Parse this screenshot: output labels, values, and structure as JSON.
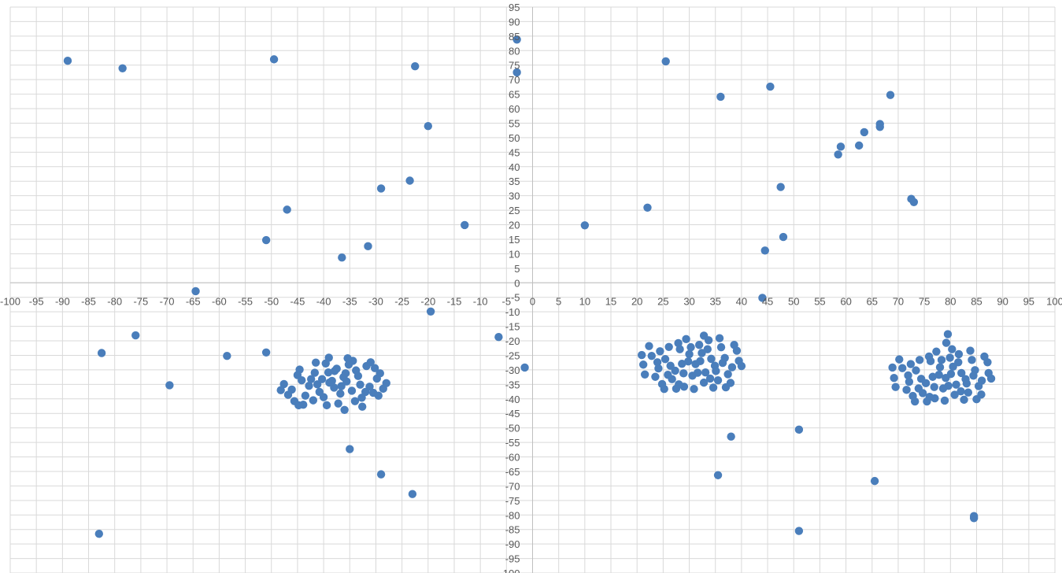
{
  "chart_data": {
    "type": "scatter",
    "title": "",
    "xlabel": "",
    "ylabel": "",
    "xlim": [
      -100,
      100
    ],
    "ylim": [
      -100,
      95
    ],
    "x_major_step": 5,
    "y_major_step": 5,
    "grid": true,
    "legend": "none",
    "colors": {
      "marker": "#4a7ebb",
      "grid": "#d9d9d9",
      "axis": "#bfbfbf",
      "tick_text": "#595959"
    },
    "series": [
      {
        "points": [
          [
            -89.0,
            76.5
          ],
          [
            -78.5,
            73.9
          ],
          [
            -49.5,
            77.0
          ],
          [
            -22.5,
            74.6
          ],
          [
            -3.0,
            83.8
          ],
          [
            -3.0,
            72.5
          ],
          [
            -20.0,
            54.0
          ],
          [
            -29.0,
            32.5
          ],
          [
            -23.5,
            35.2
          ],
          [
            -47.0,
            25.2
          ],
          [
            -13.0,
            19.9
          ],
          [
            -51.0,
            14.7
          ],
          [
            -31.5,
            12.6
          ],
          [
            -36.5,
            8.7
          ],
          [
            -64.5,
            -2.9
          ],
          [
            -19.5,
            -9.9
          ],
          [
            -76.0,
            -18.1
          ],
          [
            -82.5,
            -24.2
          ],
          [
            -58.5,
            -25.2
          ],
          [
            -51.0,
            -24.0
          ],
          [
            -69.5,
            -35.3
          ],
          [
            -6.5,
            -18.7
          ],
          [
            -1.5,
            -29.2
          ],
          [
            -35.0,
            -57.3
          ],
          [
            -29.0,
            -66.0
          ],
          [
            -23.0,
            -72.8
          ],
          [
            -83.0,
            -86.5
          ],
          [
            25.5,
            76.3
          ],
          [
            45.5,
            67.6
          ],
          [
            36.0,
            64.1
          ],
          [
            68.5,
            64.7
          ],
          [
            66.5,
            54.7
          ],
          [
            66.5,
            53.7
          ],
          [
            63.5,
            51.9
          ],
          [
            59.0,
            46.9
          ],
          [
            62.5,
            47.3
          ],
          [
            58.5,
            44.2
          ],
          [
            47.5,
            33.0
          ],
          [
            72.5,
            28.9
          ],
          [
            73.0,
            27.8
          ],
          [
            22.0,
            25.9
          ],
          [
            10.0,
            19.8
          ],
          [
            48.0,
            15.8
          ],
          [
            44.5,
            11.1
          ],
          [
            44.0,
            -5.2
          ],
          [
            79.5,
            -17.7
          ],
          [
            38.0,
            -53.0
          ],
          [
            51.0,
            -50.6
          ],
          [
            35.5,
            -66.3
          ],
          [
            65.5,
            -68.3
          ],
          [
            84.5,
            -80.4
          ],
          [
            84.5,
            -81.1
          ],
          [
            51.0,
            -85.5
          ],
          [
            -40.3,
            -33.2
          ],
          [
            -38.0,
            -36.1
          ],
          [
            -35.6,
            -34.0
          ],
          [
            -42.8,
            -35.5
          ],
          [
            -33.4,
            -32.1
          ],
          [
            -39.1,
            -30.9
          ],
          [
            -36.8,
            -38.2
          ],
          [
            -44.2,
            -33.6
          ],
          [
            -31.2,
            -35.8
          ],
          [
            -40.0,
            -39.4
          ],
          [
            -37.5,
            -29.6
          ],
          [
            -34.6,
            -37.2
          ],
          [
            -46.1,
            -36.8
          ],
          [
            -29.8,
            -33.0
          ],
          [
            -41.7,
            -31.0
          ],
          [
            -38.9,
            -34.4
          ],
          [
            -36.2,
            -32.5
          ],
          [
            -43.5,
            -38.9
          ],
          [
            -32.7,
            -39.6
          ],
          [
            -45.0,
            -31.8
          ],
          [
            -35.2,
            -28.2
          ],
          [
            -39.6,
            -27.8
          ],
          [
            -30.5,
            -37.9
          ],
          [
            -42.0,
            -40.5
          ],
          [
            -37.2,
            -41.6
          ],
          [
            -33.8,
            -30.2
          ],
          [
            -47.6,
            -34.9
          ],
          [
            -28.6,
            -36.5
          ],
          [
            -41.2,
            -35.0
          ],
          [
            -36.6,
            -35.6
          ],
          [
            -34.0,
            -40.8
          ],
          [
            -44.6,
            -29.9
          ],
          [
            -31.8,
            -28.7
          ],
          [
            -39.4,
            -42.2
          ],
          [
            -46.8,
            -38.6
          ],
          [
            -29.2,
            -31.2
          ],
          [
            -43.9,
            -42.0
          ],
          [
            -32.6,
            -42.7
          ],
          [
            -38.4,
            -33.8
          ],
          [
            -35.8,
            -31.2
          ],
          [
            -40.8,
            -37.6
          ],
          [
            -33.0,
            -35.1
          ],
          [
            -42.4,
            -33.2
          ],
          [
            -37.9,
            -30.4
          ],
          [
            -45.6,
            -40.8
          ],
          [
            -30.2,
            -29.4
          ],
          [
            -36.0,
            -43.8
          ],
          [
            -48.2,
            -37.0
          ],
          [
            -28.0,
            -34.6
          ],
          [
            -41.5,
            -27.5
          ],
          [
            -34.4,
            -26.9
          ],
          [
            -39.0,
            -25.8
          ],
          [
            -35.4,
            -26.0
          ],
          [
            -31.0,
            -27.4
          ],
          [
            -29.5,
            -38.9
          ],
          [
            -44.8,
            -42.2
          ],
          [
            -32.0,
            -37.6
          ],
          [
            29.8,
            -27.1
          ],
          [
            32.4,
            -24.2
          ],
          [
            27.3,
            -30.3
          ],
          [
            34.9,
            -28.6
          ],
          [
            30.6,
            -32.0
          ],
          [
            25.4,
            -26.3
          ],
          [
            36.8,
            -25.9
          ],
          [
            28.2,
            -22.9
          ],
          [
            33.1,
            -30.9
          ],
          [
            31.9,
            -21.4
          ],
          [
            24.1,
            -29.5
          ],
          [
            38.2,
            -29.1
          ],
          [
            26.7,
            -33.2
          ],
          [
            35.5,
            -33.6
          ],
          [
            29.0,
            -35.8
          ],
          [
            22.8,
            -25.2
          ],
          [
            39.5,
            -26.9
          ],
          [
            33.7,
            -19.8
          ],
          [
            27.9,
            -20.8
          ],
          [
            31.2,
            -28.0
          ],
          [
            34.2,
            -26.2
          ],
          [
            25.9,
            -31.7
          ],
          [
            37.4,
            -31.5
          ],
          [
            30.0,
            -24.6
          ],
          [
            23.5,
            -32.4
          ],
          [
            36.1,
            -22.2
          ],
          [
            28.6,
            -27.9
          ],
          [
            32.8,
            -34.4
          ],
          [
            21.2,
            -28.2
          ],
          [
            39.1,
            -23.4
          ],
          [
            26.1,
            -22.1
          ],
          [
            34.6,
            -36.1
          ],
          [
            30.9,
            -36.6
          ],
          [
            24.8,
            -34.9
          ],
          [
            37.9,
            -34.5
          ],
          [
            22.3,
            -21.8
          ],
          [
            29.4,
            -19.4
          ],
          [
            35.8,
            -19.1
          ],
          [
            27.5,
            -36.5
          ],
          [
            33.5,
            -22.9
          ],
          [
            20.9,
            -24.9
          ],
          [
            38.6,
            -21.4
          ],
          [
            31.6,
            -31.0
          ],
          [
            26.4,
            -28.6
          ],
          [
            35.1,
            -30.4
          ],
          [
            23.9,
            -27.4
          ],
          [
            28.9,
            -31.2
          ],
          [
            32.1,
            -27.0
          ],
          [
            36.4,
            -27.6
          ],
          [
            30.3,
            -22.2
          ],
          [
            24.4,
            -23.6
          ],
          [
            40.0,
            -28.7
          ],
          [
            21.5,
            -31.6
          ],
          [
            32.8,
            -18.2
          ],
          [
            28.0,
            -35.0
          ],
          [
            34.0,
            -33.0
          ],
          [
            25.2,
            -36.6
          ],
          [
            37.0,
            -36.0
          ],
          [
            77.8,
            -31.7
          ],
          [
            80.5,
            -28.9
          ],
          [
            75.3,
            -34.6
          ],
          [
            82.9,
            -33.2
          ],
          [
            78.6,
            -36.4
          ],
          [
            73.4,
            -30.2
          ],
          [
            84.7,
            -30.1
          ],
          [
            76.2,
            -27.0
          ],
          [
            81.1,
            -35.1
          ],
          [
            79.9,
            -25.8
          ],
          [
            72.1,
            -34.1
          ],
          [
            86.0,
            -33.7
          ],
          [
            74.7,
            -38.0
          ],
          [
            83.4,
            -37.8
          ],
          [
            77.0,
            -39.8
          ],
          [
            70.8,
            -29.4
          ],
          [
            87.3,
            -31.1
          ],
          [
            81.6,
            -24.6
          ],
          [
            75.9,
            -25.4
          ],
          [
            79.1,
            -32.8
          ],
          [
            82.1,
            -31.1
          ],
          [
            73.9,
            -36.4
          ],
          [
            85.4,
            -35.6
          ],
          [
            78.0,
            -29.1
          ],
          [
            71.6,
            -36.9
          ],
          [
            84.1,
            -26.6
          ],
          [
            76.6,
            -32.4
          ],
          [
            80.8,
            -38.6
          ],
          [
            69.2,
            -32.8
          ],
          [
            87.1,
            -27.4
          ],
          [
            74.1,
            -26.6
          ],
          [
            82.6,
            -40.3
          ],
          [
            78.9,
            -40.6
          ],
          [
            72.8,
            -39.0
          ],
          [
            85.9,
            -38.5
          ],
          [
            70.2,
            -26.4
          ],
          [
            77.3,
            -23.7
          ],
          [
            83.8,
            -23.4
          ],
          [
            75.5,
            -40.9
          ],
          [
            81.5,
            -27.4
          ],
          [
            68.9,
            -29.2
          ],
          [
            86.5,
            -25.4
          ],
          [
            79.6,
            -35.5
          ],
          [
            74.4,
            -33.1
          ],
          [
            83.1,
            -34.7
          ],
          [
            71.9,
            -31.9
          ],
          [
            76.9,
            -35.9
          ],
          [
            80.1,
            -31.4
          ],
          [
            84.4,
            -32.0
          ],
          [
            78.3,
            -26.6
          ],
          [
            72.4,
            -28.0
          ],
          [
            87.8,
            -33.0
          ],
          [
            69.5,
            -35.9
          ],
          [
            80.3,
            -22.9
          ],
          [
            76.0,
            -39.3
          ],
          [
            82.0,
            -37.4
          ],
          [
            73.2,
            -40.9
          ],
          [
            85.0,
            -40.1
          ],
          [
            79.2,
            -20.7
          ]
        ]
      }
    ]
  }
}
